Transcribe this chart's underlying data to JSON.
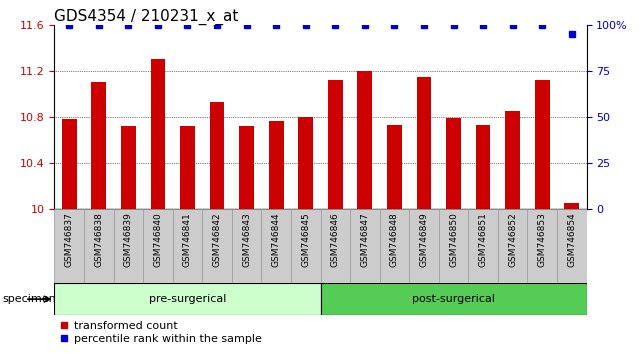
{
  "title": "GDS4354 / 210231_x_at",
  "categories": [
    "GSM746837",
    "GSM746838",
    "GSM746839",
    "GSM746840",
    "GSM746841",
    "GSM746842",
    "GSM746843",
    "GSM746844",
    "GSM746845",
    "GSM746846",
    "GSM746847",
    "GSM746848",
    "GSM746849",
    "GSM746850",
    "GSM746851",
    "GSM746852",
    "GSM746853",
    "GSM746854"
  ],
  "bar_values": [
    10.78,
    11.1,
    10.72,
    11.3,
    10.72,
    10.93,
    10.72,
    10.76,
    10.8,
    11.12,
    11.2,
    10.73,
    11.15,
    10.79,
    10.73,
    10.85,
    11.12,
    10.05
  ],
  "percentile_values": [
    100,
    100,
    100,
    100,
    100,
    100,
    100,
    100,
    100,
    100,
    100,
    100,
    100,
    100,
    100,
    100,
    100,
    95
  ],
  "bar_color": "#cc0000",
  "percentile_color": "#0000cc",
  "ylim": [
    10.0,
    11.6
  ],
  "y_ticks": [
    10.0,
    10.4,
    10.8,
    11.2,
    11.6
  ],
  "y_tick_labels": [
    "10",
    "10.4",
    "10.8",
    "11.2",
    "11.6"
  ],
  "right_ylim": [
    0,
    100
  ],
  "right_yticks": [
    0,
    25,
    50,
    75,
    100
  ],
  "right_yticklabels": [
    "0",
    "25",
    "50",
    "75",
    "100%"
  ],
  "pre_surgical_label": "pre-surgerical",
  "post_surgical_label": "post-surgerical",
  "pre_surgical_count": 9,
  "post_surgical_count": 9,
  "pre_color": "#ccffcc",
  "post_color": "#55cc55",
  "specimen_label": "specimen",
  "legend_bar_label": "transformed count",
  "legend_dot_label": "percentile rank within the sample",
  "title_fontsize": 11,
  "tick_fontsize": 8,
  "bar_width": 0.5,
  "xtick_gray": "#cccccc",
  "xtick_border": "#999999"
}
